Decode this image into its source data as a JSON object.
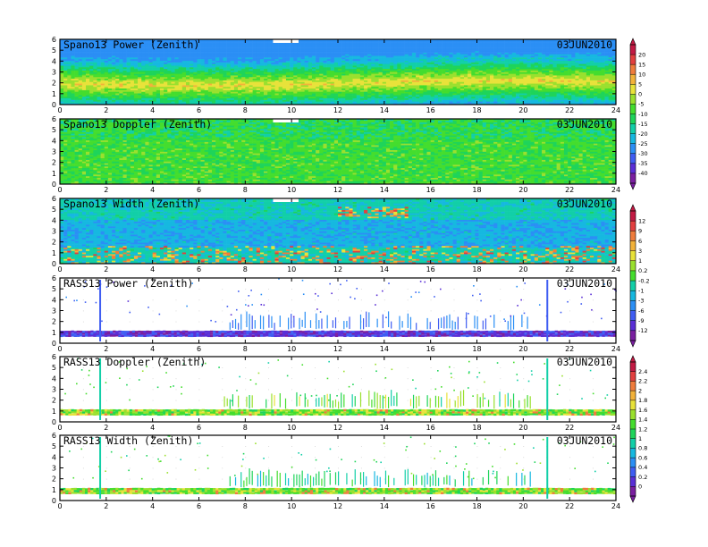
{
  "figure": {
    "date": "03JUN2010",
    "x_ticks": [
      0,
      2,
      4,
      6,
      8,
      10,
      12,
      14,
      16,
      18,
      20,
      22,
      24
    ],
    "y_ticks": [
      0,
      1,
      2,
      3,
      4,
      5,
      6
    ]
  },
  "colorbars": [
    {
      "ticks": [
        "20",
        "15",
        "10",
        "5",
        "0",
        "-5",
        "-10",
        "-15",
        "-20",
        "-25",
        "-30",
        "-35",
        "-40"
      ]
    },
    {
      "ticks": [
        "12",
        "9",
        "6",
        "3",
        "1",
        "0.2",
        "-0.2",
        "-1",
        "-3",
        "-6",
        "-9",
        "-12"
      ]
    },
    {
      "ticks": [
        "2.4",
        "2.2",
        "2",
        "1.8",
        "1.6",
        "1.4",
        "1.2",
        "1",
        "0.8",
        "0.6",
        "0.4",
        "0.2",
        "0"
      ]
    }
  ],
  "colors": {
    "scale": [
      "#7a1fa0",
      "#5a2fd6",
      "#3f5df2",
      "#2b8ff5",
      "#16b8e0",
      "#12cfa8",
      "#1ed45a",
      "#44dd2e",
      "#9ae02e",
      "#e8e23a",
      "#f2b23a",
      "#ef7c3c",
      "#e23f3f",
      "#c21a44"
    ]
  },
  "chart_data": [
    {
      "type": "heatmap",
      "title": "Spano13 Power (Zenith)",
      "date": "03JUN2010",
      "xlim": [
        0,
        24
      ],
      "ylim": [
        0,
        6
      ],
      "colorbar": 0,
      "description_of_field": {
        "max_layer_height": [
          1.5,
          2.2
        ],
        "max_value": 10,
        "background": -15
      }
    },
    {
      "type": "heatmap",
      "title": "Spano13 Doppler (Zenith)",
      "date": "03JUN2010",
      "xlim": [
        0,
        24
      ],
      "ylim": [
        0,
        6
      ],
      "colorbar": 0
    },
    {
      "type": "heatmap",
      "title": "Spano13 Width (Zenith)",
      "date": "03JUN2010",
      "xlim": [
        0,
        24
      ],
      "ylim": [
        0,
        6
      ],
      "colorbar": 1
    },
    {
      "type": "heatmap",
      "title": "RASS13 Power (Zenith)",
      "date": "03JUN2010",
      "xlim": [
        0,
        24
      ],
      "ylim": [
        0,
        6
      ],
      "colorbar": 1
    },
    {
      "type": "heatmap",
      "title": "RASS13 Doppler (Zenith)",
      "date": "03JUN2010",
      "xlim": [
        0,
        24
      ],
      "ylim": [
        0,
        6
      ],
      "colorbar": 2
    },
    {
      "type": "heatmap",
      "title": "RASS13 Width (Zenith)",
      "date": "03JUN2010",
      "xlim": [
        0,
        24
      ],
      "ylim": [
        0,
        6
      ],
      "colorbar": 2
    }
  ]
}
